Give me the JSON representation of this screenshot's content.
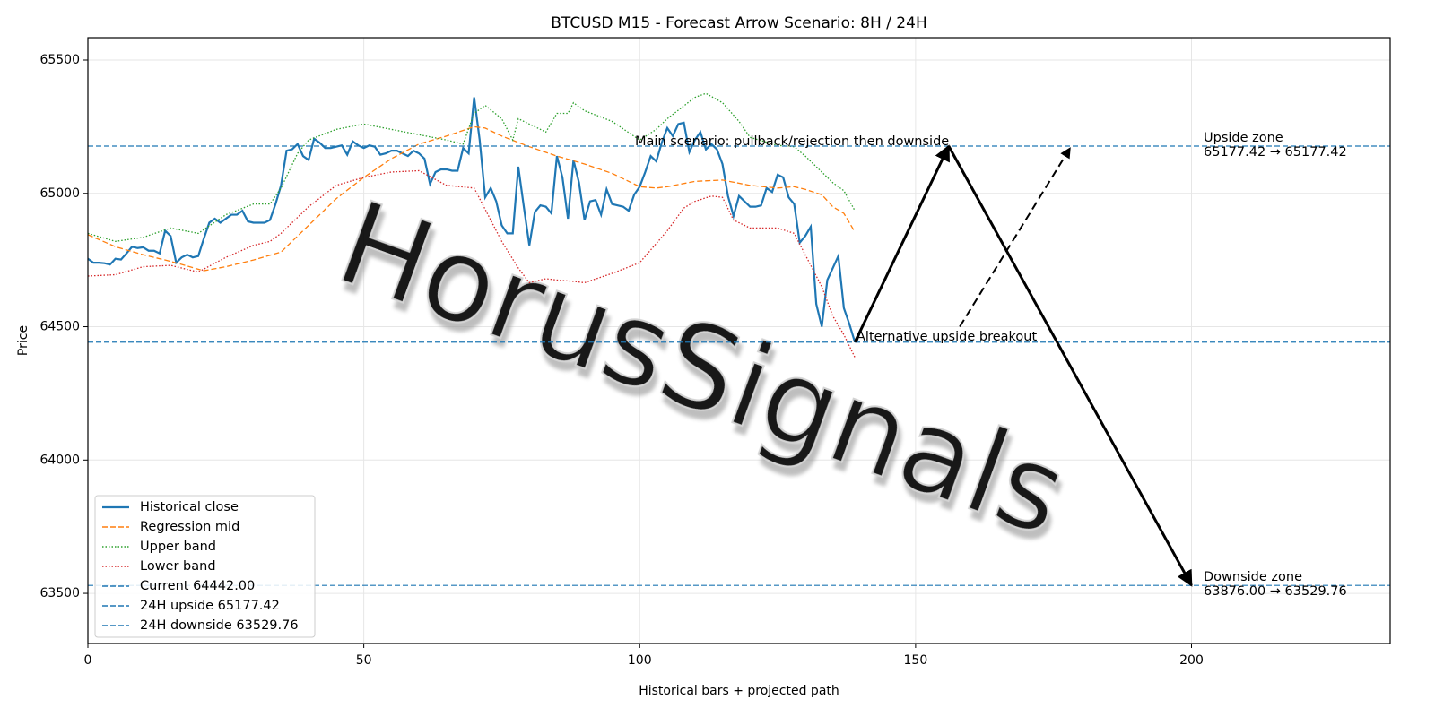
{
  "chart_data": {
    "type": "line",
    "title": "BTCUSD M15 - Forecast Arrow Scenario: 8H / 24H",
    "xlabel": "Historical bars + projected path",
    "ylabel": "Price",
    "watermark": "HorusSignals",
    "xlim": [
      0,
      236
    ],
    "ylim": [
      63312,
      65584
    ],
    "xticks": [
      0,
      50,
      100,
      150,
      200
    ],
    "yticks": [
      63500,
      64000,
      64500,
      65000,
      65500
    ],
    "grid": true,
    "legend": "lower left",
    "series": [
      {
        "name": "Historical close",
        "color": "#1f77b4",
        "style": "solid",
        "x": [
          0,
          1,
          2,
          3,
          4,
          5,
          6,
          7,
          8,
          9,
          10,
          11,
          12,
          13,
          14,
          15,
          16,
          17,
          18,
          19,
          20,
          21,
          22,
          23,
          24,
          25,
          26,
          27,
          28,
          29,
          30,
          31,
          32,
          33,
          34,
          35,
          36,
          37,
          38,
          39,
          40,
          41,
          42,
          43,
          44,
          45,
          46,
          47,
          48,
          49,
          50,
          51,
          52,
          53,
          54,
          55,
          56,
          57,
          58,
          59,
          60,
          61,
          62,
          63,
          64,
          65,
          66,
          67,
          68,
          69,
          70,
          71,
          72,
          73,
          74,
          75,
          76,
          77,
          78,
          79,
          80,
          81,
          82,
          83,
          84,
          85,
          86,
          87,
          88,
          89,
          90,
          91,
          92,
          93,
          94,
          95,
          96,
          97,
          98,
          99,
          100,
          101,
          102,
          103,
          104,
          105,
          106,
          107,
          108,
          109,
          110,
          111,
          112,
          113,
          114,
          115,
          116,
          117,
          118,
          119,
          120,
          121,
          122,
          123,
          124,
          125,
          126,
          127,
          128,
          129,
          130,
          131,
          132,
          133,
          134,
          135,
          136,
          137,
          138,
          139
        ],
        "values": [
          64755,
          64740,
          64740,
          64738,
          64733,
          64755,
          64752,
          64775,
          64800,
          64795,
          64798,
          64785,
          64785,
          64775,
          64860,
          64840,
          64740,
          64760,
          64770,
          64760,
          64765,
          64830,
          64890,
          64905,
          64890,
          64905,
          64920,
          64920,
          64935,
          64895,
          64890,
          64890,
          64890,
          64900,
          64960,
          65030,
          65160,
          65165,
          65185,
          65140,
          65125,
          65205,
          65190,
          65170,
          65170,
          65175,
          65180,
          65145,
          65195,
          65180,
          65170,
          65180,
          65175,
          65145,
          65150,
          65160,
          65160,
          65150,
          65140,
          65160,
          65150,
          65130,
          65035,
          65080,
          65090,
          65090,
          65085,
          65085,
          65170,
          65150,
          65360,
          65200,
          64985,
          65020,
          64970,
          64880,
          64850,
          64850,
          65100,
          64950,
          64805,
          64930,
          64955,
          64950,
          64925,
          65140,
          65060,
          64905,
          65125,
          65040,
          64900,
          64970,
          64975,
          64920,
          65015,
          64960,
          64955,
          64950,
          64935,
          64995,
          65025,
          65080,
          65140,
          65120,
          65190,
          65245,
          65215,
          65260,
          65265,
          65155,
          65200,
          65230,
          65165,
          65185,
          65165,
          65110,
          64990,
          64915,
          64990,
          64970,
          64950,
          64950,
          64955,
          65020,
          65005,
          65070,
          65060,
          64985,
          64960,
          64815,
          64840,
          64875,
          64585,
          64500,
          64675,
          64720,
          64765,
          64570,
          64510,
          64442
        ]
      },
      {
        "name": "Regression mid",
        "color": "#ff7f0e",
        "style": "dashed",
        "x": [
          0,
          5,
          10,
          15,
          21,
          25,
          30,
          35,
          40,
          45,
          50,
          55,
          60,
          65,
          70,
          72,
          75,
          80,
          85,
          90,
          95,
          100,
          103,
          105,
          110,
          115,
          120,
          125,
          128,
          130,
          133,
          135,
          137,
          139
        ],
        "values": [
          64845,
          64800,
          64770,
          64745,
          64710,
          64725,
          64750,
          64780,
          64880,
          64980,
          65060,
          65130,
          65185,
          65215,
          65250,
          65245,
          65215,
          65175,
          65140,
          65110,
          65075,
          65025,
          65020,
          65025,
          65045,
          65050,
          65030,
          65020,
          65025,
          65015,
          64995,
          64950,
          64925,
          64855
        ]
      },
      {
        "name": "Upper band",
        "color": "#2ca02c",
        "style": "dotted",
        "x": [
          0,
          5,
          10,
          15,
          20,
          25,
          30,
          33,
          35,
          38,
          40,
          45,
          50,
          55,
          60,
          65,
          68,
          70,
          72,
          75,
          77,
          78,
          80,
          83,
          85,
          87,
          88,
          90,
          95,
          100,
          103,
          105,
          110,
          112,
          115,
          118,
          120,
          125,
          128,
          130,
          133,
          135,
          137,
          139
        ],
        "values": [
          64850,
          64820,
          64835,
          64870,
          64850,
          64920,
          64960,
          64960,
          65020,
          65150,
          65200,
          65240,
          65260,
          65240,
          65220,
          65200,
          65185,
          65300,
          65330,
          65280,
          65200,
          65280,
          65260,
          65230,
          65300,
          65300,
          65340,
          65310,
          65270,
          65200,
          65240,
          65280,
          65360,
          65375,
          65340,
          65270,
          65210,
          65180,
          65175,
          65140,
          65080,
          65040,
          65010,
          64935
        ]
      },
      {
        "name": "Lower band",
        "color": "#d62728",
        "style": "dotted",
        "x": [
          0,
          5,
          10,
          15,
          20,
          25,
          30,
          33,
          35,
          40,
          45,
          50,
          55,
          60,
          65,
          70,
          72,
          75,
          78,
          80,
          83,
          85,
          88,
          90,
          95,
          100,
          105,
          108,
          110,
          113,
          115,
          117,
          120,
          125,
          128,
          130,
          133,
          135,
          137,
          139
        ],
        "values": [
          64690,
          64695,
          64725,
          64730,
          64705,
          64760,
          64805,
          64820,
          64850,
          64950,
          65030,
          65060,
          65080,
          65085,
          65030,
          65020,
          64940,
          64820,
          64720,
          64665,
          64680,
          64675,
          64670,
          64665,
          64700,
          64740,
          64860,
          64945,
          64970,
          64990,
          64985,
          64900,
          64870,
          64870,
          64850,
          64770,
          64650,
          64540,
          64470,
          64385
        ]
      }
    ],
    "hlines": [
      {
        "name": "Current 64442.00",
        "value": 64442,
        "color": "#1f77b4"
      },
      {
        "name": "24H upside 65177.42",
        "value": 65177.42,
        "color": "#1f77b4"
      },
      {
        "name": "24H downside 63529.76",
        "value": 63529.76,
        "color": "#1f77b4"
      }
    ],
    "arrows": [
      {
        "style": "solid",
        "x": [
          139,
          156
        ],
        "y": [
          64442,
          65177.42
        ]
      },
      {
        "style": "solid",
        "x": [
          156,
          200
        ],
        "y": [
          65177.42,
          63529.76
        ]
      },
      {
        "style": "dashed",
        "x": [
          158,
          178
        ],
        "y": [
          64500,
          65170
        ]
      }
    ],
    "annotations": [
      {
        "text": [
          "Main scenario: pullback/rejection then downside"
        ]
      },
      {
        "text": [
          "Alternative upside breakout"
        ]
      },
      {
        "text": [
          "Upside zone",
          "65177.42 → 65177.42"
        ]
      },
      {
        "text": [
          "Downside zone",
          "63876.00 → 63529.76"
        ]
      }
    ]
  }
}
